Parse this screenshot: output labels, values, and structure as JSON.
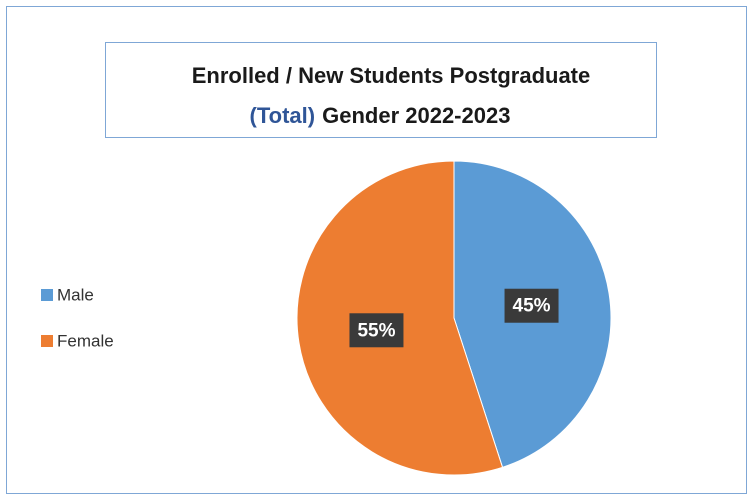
{
  "chart_data": {
    "type": "pie",
    "title": [
      "Enrolled / New Students  Postgraduate",
      "(Total)",
      "Gender 2022-2023"
    ],
    "categories": [
      "Male",
      "Female"
    ],
    "values": [
      45,
      55
    ],
    "value_labels": [
      "45%",
      "55%"
    ],
    "colors": [
      "#5b9bd5",
      "#ed7d31"
    ],
    "legend": "left"
  }
}
